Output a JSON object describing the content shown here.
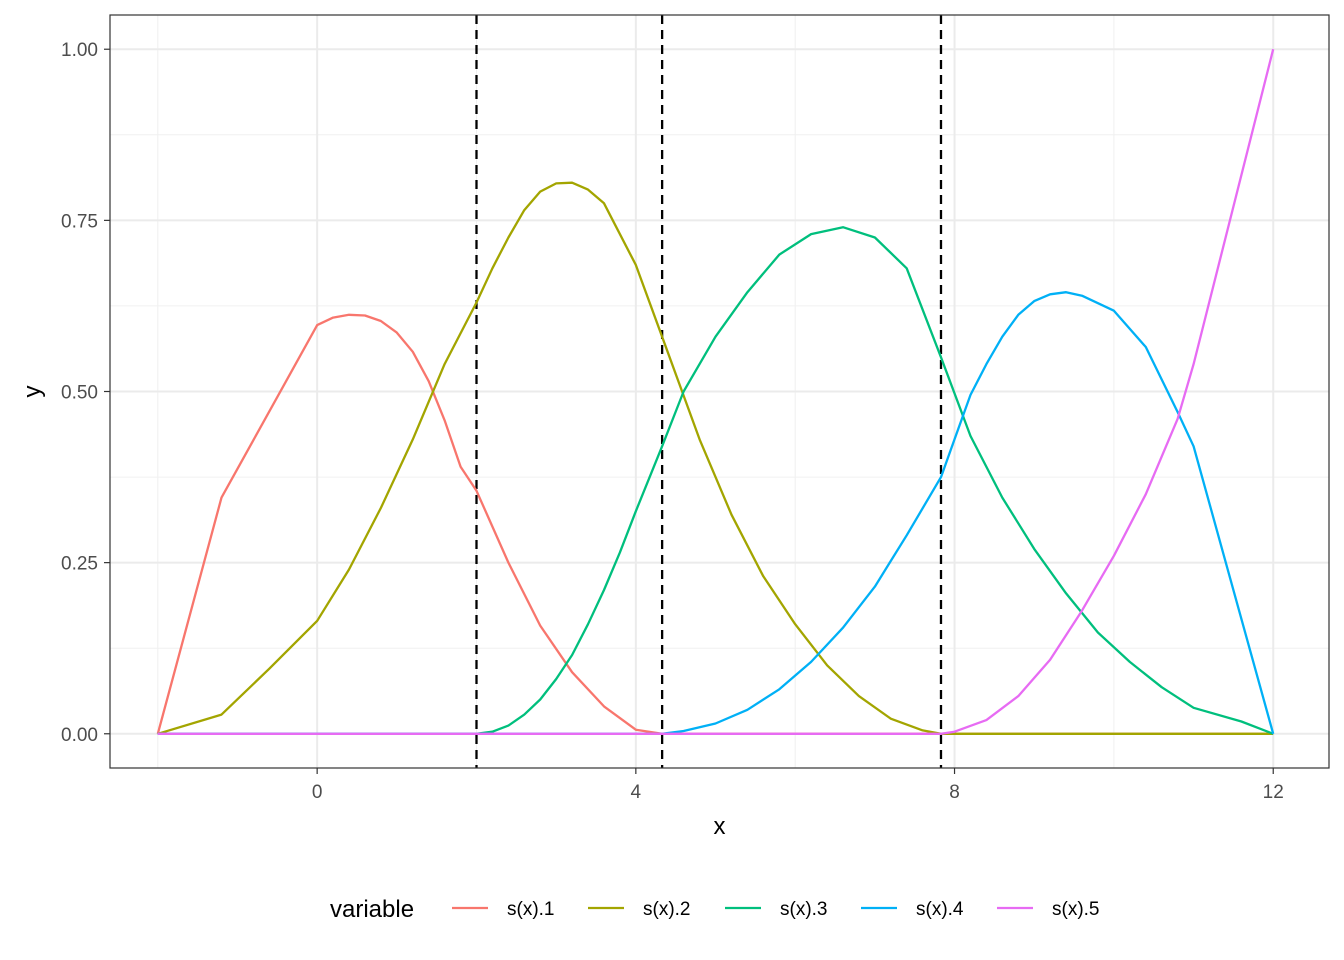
{
  "chart_data": {
    "type": "line",
    "xlabel": "x",
    "ylabel": "y",
    "xlim": [
      -2.6,
      12.7
    ],
    "ylim": [
      -0.05,
      1.05
    ],
    "x_ticks": [
      0,
      4,
      8,
      12
    ],
    "x_tick_labels": [
      "0",
      "4",
      "8",
      "12"
    ],
    "y_ticks": [
      0,
      0.25,
      0.5,
      0.75,
      1.0
    ],
    "y_tick_labels": [
      "0.00",
      "0.25",
      "0.50",
      "0.75",
      "1.00"
    ],
    "x_minor_ticks": [
      -2,
      2,
      6,
      10
    ],
    "y_minor_ticks": [
      0.125,
      0.375,
      0.625,
      0.875
    ],
    "grid": true,
    "theme": "bw",
    "legend": {
      "title": "variable",
      "position": "bottom"
    },
    "vlines": [
      {
        "x": 2.0,
        "style": "dashed",
        "color": "#000000"
      },
      {
        "x": 4.33,
        "style": "dashed",
        "color": "#000000"
      },
      {
        "x": 7.83,
        "style": "dashed",
        "color": "#000000"
      }
    ],
    "series": [
      {
        "name": "s(x).1",
        "color": "#F8766D",
        "points": [
          [
            -2,
            0
          ],
          [
            -1.2,
            0.345
          ],
          [
            0,
            0.597
          ],
          [
            0.2,
            0.608
          ],
          [
            0.4,
            0.612
          ],
          [
            0.6,
            0.611
          ],
          [
            0.8,
            0.603
          ],
          [
            1.0,
            0.586
          ],
          [
            1.2,
            0.558
          ],
          [
            1.4,
            0.515
          ],
          [
            1.6,
            0.458
          ],
          [
            1.8,
            0.39
          ],
          [
            2.0,
            0.355
          ],
          [
            2.4,
            0.25
          ],
          [
            2.8,
            0.158
          ],
          [
            3.2,
            0.09
          ],
          [
            3.6,
            0.04
          ],
          [
            4.0,
            0.006
          ],
          [
            4.33,
            0
          ],
          [
            12,
            0
          ]
        ]
      },
      {
        "name": "s(x).2",
        "color": "#A3A500",
        "points": [
          [
            -2,
            0
          ],
          [
            -1.2,
            0.028
          ],
          [
            -0.6,
            0.095
          ],
          [
            0,
            0.165
          ],
          [
            0.4,
            0.24
          ],
          [
            0.8,
            0.33
          ],
          [
            1.2,
            0.43
          ],
          [
            1.6,
            0.54
          ],
          [
            2.0,
            0.63
          ],
          [
            2.2,
            0.68
          ],
          [
            2.4,
            0.725
          ],
          [
            2.6,
            0.765
          ],
          [
            2.8,
            0.792
          ],
          [
            3.0,
            0.804
          ],
          [
            3.2,
            0.805
          ],
          [
            3.4,
            0.795
          ],
          [
            3.6,
            0.775
          ],
          [
            4.0,
            0.685
          ],
          [
            4.33,
            0.58
          ],
          [
            4.8,
            0.43
          ],
          [
            5.2,
            0.32
          ],
          [
            5.6,
            0.23
          ],
          [
            6.0,
            0.16
          ],
          [
            6.4,
            0.1
          ],
          [
            6.8,
            0.055
          ],
          [
            7.2,
            0.022
          ],
          [
            7.6,
            0.005
          ],
          [
            7.83,
            0
          ],
          [
            12,
            0
          ]
        ]
      },
      {
        "name": "s(x).3",
        "color": "#00BF7D",
        "points": [
          [
            -2,
            0
          ],
          [
            2.0,
            0
          ],
          [
            2.2,
            0.003
          ],
          [
            2.4,
            0.012
          ],
          [
            2.6,
            0.028
          ],
          [
            2.8,
            0.05
          ],
          [
            3.0,
            0.08
          ],
          [
            3.2,
            0.115
          ],
          [
            3.4,
            0.16
          ],
          [
            3.6,
            0.21
          ],
          [
            3.8,
            0.265
          ],
          [
            4.0,
            0.325
          ],
          [
            4.33,
            0.42
          ],
          [
            4.6,
            0.5
          ],
          [
            5.0,
            0.58
          ],
          [
            5.4,
            0.645
          ],
          [
            5.8,
            0.7
          ],
          [
            6.2,
            0.73
          ],
          [
            6.6,
            0.74
          ],
          [
            7.0,
            0.725
          ],
          [
            7.4,
            0.68
          ],
          [
            7.83,
            0.55
          ],
          [
            8.2,
            0.435
          ],
          [
            8.6,
            0.345
          ],
          [
            9.0,
            0.27
          ],
          [
            9.4,
            0.205
          ],
          [
            9.8,
            0.148
          ],
          [
            10.2,
            0.105
          ],
          [
            10.6,
            0.068
          ],
          [
            11.0,
            0.038
          ],
          [
            11.6,
            0.018
          ],
          [
            12,
            0
          ]
        ]
      },
      {
        "name": "s(x).4",
        "color": "#00B0F6",
        "points": [
          [
            -2,
            0
          ],
          [
            4.33,
            0
          ],
          [
            4.6,
            0.004
          ],
          [
            5.0,
            0.015
          ],
          [
            5.4,
            0.035
          ],
          [
            5.8,
            0.065
          ],
          [
            6.2,
            0.105
          ],
          [
            6.6,
            0.155
          ],
          [
            7.0,
            0.215
          ],
          [
            7.4,
            0.29
          ],
          [
            7.83,
            0.375
          ],
          [
            8.0,
            0.43
          ],
          [
            8.2,
            0.495
          ],
          [
            8.4,
            0.54
          ],
          [
            8.6,
            0.58
          ],
          [
            8.8,
            0.612
          ],
          [
            9.0,
            0.632
          ],
          [
            9.2,
            0.642
          ],
          [
            9.4,
            0.645
          ],
          [
            9.6,
            0.64
          ],
          [
            10.0,
            0.618
          ],
          [
            10.4,
            0.565
          ],
          [
            10.8,
            0.47
          ],
          [
            11.0,
            0.42
          ],
          [
            12,
            0
          ]
        ]
      },
      {
        "name": "s(x).5",
        "color": "#E76BF3",
        "points": [
          [
            -2,
            0
          ],
          [
            7.83,
            0
          ],
          [
            8.0,
            0.003
          ],
          [
            8.4,
            0.02
          ],
          [
            8.8,
            0.055
          ],
          [
            9.2,
            0.108
          ],
          [
            9.6,
            0.18
          ],
          [
            10.0,
            0.26
          ],
          [
            10.4,
            0.35
          ],
          [
            10.8,
            0.46
          ],
          [
            11.0,
            0.54
          ],
          [
            12,
            1.0
          ]
        ]
      }
    ]
  }
}
